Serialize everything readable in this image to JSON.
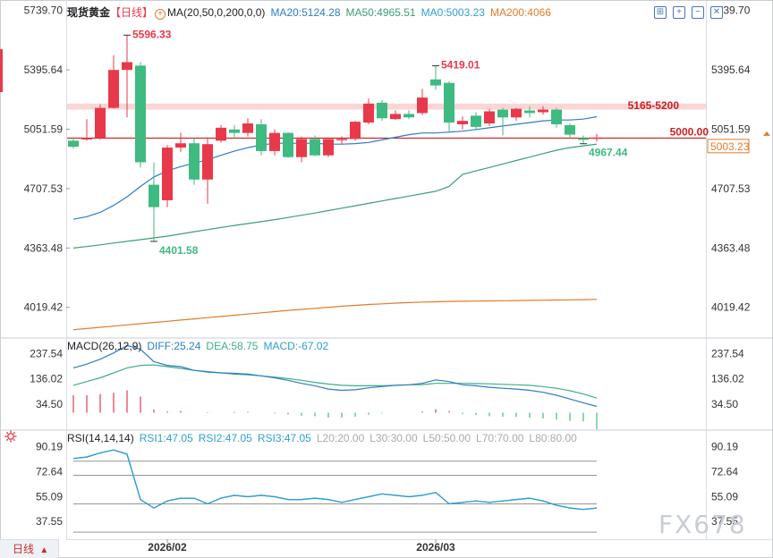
{
  "header": {
    "instrument": "现货黄金",
    "period": "【日线】",
    "ma_label": "MA(20,50,0,200,0,0)",
    "ma20": "MA20:5124.28",
    "ma50": "MA50:4965.51",
    "ma0": "MA0:5003.23",
    "ma200": "MA200:4066"
  },
  "macd_head": {
    "label": "MACD(26,12,9)",
    "diff": "DIFF:25.24",
    "dea": "DEA:58.75",
    "macd": "MACD:-67.02"
  },
  "rsi_head": {
    "label": "RSI(14,14,14)",
    "rsi1": "RSI1:47.05",
    "rsi2": "RSI2:47.05",
    "rsi3": "RSI3:47.05",
    "l20": "L20:20.00",
    "l30": "L30:30.00",
    "l50": "L50:50.00",
    "l70": "L70:70.00",
    "l80": "L80:80.00"
  },
  "period_tab": {
    "label": "日线",
    "arrow": "▲"
  },
  "watermark": "FX678",
  "icons": [
    "plus-circle-icon",
    "zoom-fit-icon",
    "zoom-in-icon",
    "zoom-out-icon",
    "close-icon",
    "gear-icon"
  ],
  "colors": {
    "up": "#e8394a",
    "down": "#3fba81",
    "ma20": "#2e7cc9",
    "ma50": "#3e9e72",
    "ma200": "#e07c2a",
    "ref": "#cc1f1f",
    "zone": "#f8c8c8",
    "macd_dea": "#3fae8a"
  },
  "chart_data": [
    {
      "type": "candlestick",
      "panel": "price",
      "title": "现货黄金",
      "yticks": [
        5739.7,
        5395.64,
        5051.59,
        4707.53,
        4363.48,
        4019.42
      ],
      "ylim": [
        3842,
        5800
      ],
      "xticks": [
        {
          "label": "2026/02",
          "index": 7
        },
        {
          "label": "2026/03",
          "index": 27
        }
      ],
      "candles": [
        {
          "o": 4985,
          "h": 5006,
          "l": 4940,
          "c": 4950
        },
        {
          "o": 5000,
          "h": 5110,
          "l": 4985,
          "c": 5000
        },
        {
          "o": 5000,
          "h": 5195,
          "l": 4990,
          "c": 5175
        },
        {
          "o": 5175,
          "h": 5480,
          "l": 5170,
          "c": 5395
        },
        {
          "o": 5395,
          "h": 5596.33,
          "l": 5120,
          "c": 5440
        },
        {
          "o": 5420,
          "h": 5440,
          "l": 4830,
          "c": 4860
        },
        {
          "o": 4730,
          "h": 4860,
          "l": 4401.58,
          "c": 4600
        },
        {
          "o": 4640,
          "h": 4960,
          "l": 4600,
          "c": 4945
        },
        {
          "o": 4945,
          "h": 5030,
          "l": 4920,
          "c": 4970
        },
        {
          "o": 4970,
          "h": 5000,
          "l": 4730,
          "c": 4760
        },
        {
          "o": 4760,
          "h": 5000,
          "l": 4620,
          "c": 4965
        },
        {
          "o": 4985,
          "h": 5075,
          "l": 4975,
          "c": 5060
        },
        {
          "o": 5050,
          "h": 5075,
          "l": 5005,
          "c": 5030
        },
        {
          "o": 5030,
          "h": 5115,
          "l": 5010,
          "c": 5085
        },
        {
          "o": 5080,
          "h": 5110,
          "l": 4900,
          "c": 4925
        },
        {
          "o": 4925,
          "h": 5050,
          "l": 4900,
          "c": 5030
        },
        {
          "o": 5030,
          "h": 5035,
          "l": 4885,
          "c": 4890
        },
        {
          "o": 4890,
          "h": 5010,
          "l": 4860,
          "c": 4995
        },
        {
          "o": 4995,
          "h": 5015,
          "l": 4895,
          "c": 4900
        },
        {
          "o": 4900,
          "h": 4990,
          "l": 4890,
          "c": 4995
        },
        {
          "o": 4990,
          "h": 5010,
          "l": 4965,
          "c": 4995
        },
        {
          "o": 4995,
          "h": 5100,
          "l": 4985,
          "c": 5095
        },
        {
          "o": 5090,
          "h": 5230,
          "l": 5080,
          "c": 5200
        },
        {
          "o": 5205,
          "h": 5220,
          "l": 5100,
          "c": 5115
        },
        {
          "o": 5110,
          "h": 5160,
          "l": 5105,
          "c": 5140
        },
        {
          "o": 5140,
          "h": 5160,
          "l": 5110,
          "c": 5120
        },
        {
          "o": 5145,
          "h": 5285,
          "l": 5135,
          "c": 5235
        },
        {
          "o": 5340,
          "h": 5419.01,
          "l": 5280,
          "c": 5305
        },
        {
          "o": 5320,
          "h": 5330,
          "l": 5030,
          "c": 5090
        },
        {
          "o": 5080,
          "h": 5125,
          "l": 5050,
          "c": 5100
        },
        {
          "o": 5130,
          "h": 5150,
          "l": 5050,
          "c": 5065
        },
        {
          "o": 5085,
          "h": 5170,
          "l": 5070,
          "c": 5155
        },
        {
          "o": 5165,
          "h": 5175,
          "l": 5015,
          "c": 5120
        },
        {
          "o": 5120,
          "h": 5175,
          "l": 5100,
          "c": 5170
        },
        {
          "o": 5160,
          "h": 5185,
          "l": 5120,
          "c": 5145
        },
        {
          "o": 5150,
          "h": 5185,
          "l": 5135,
          "c": 5165
        },
        {
          "o": 5165,
          "h": 5175,
          "l": 5060,
          "c": 5080
        },
        {
          "o": 5075,
          "h": 5085,
          "l": 5005,
          "c": 5020
        },
        {
          "o": 5000,
          "h": 5015,
          "l": 4967.44,
          "c": 4990
        },
        {
          "o": 5000,
          "h": 5025,
          "l": 4980,
          "c": 5003.23
        }
      ],
      "ma20": [
        4530,
        4545,
        4570,
        4610,
        4660,
        4720,
        4775,
        4810,
        4835,
        4855,
        4875,
        4900,
        4925,
        4945,
        4960,
        4970,
        4970,
        4970,
        4970,
        4965,
        4965,
        4968,
        4975,
        4990,
        5005,
        5020,
        5030,
        5030,
        5035,
        5040,
        5050,
        5060,
        5070,
        5080,
        5090,
        5100,
        5105,
        5105,
        5110,
        5124.28
      ],
      "ma50": [
        4363,
        4372,
        4382,
        4392,
        4402,
        4412,
        4422,
        4432,
        4445,
        4458,
        4470,
        4482,
        4494,
        4505,
        4516,
        4528,
        4540,
        4553,
        4566,
        4580,
        4594,
        4608,
        4622,
        4636,
        4650,
        4664,
        4678,
        4692,
        4720,
        4790,
        4810,
        4830,
        4850,
        4870,
        4890,
        4910,
        4930,
        4945,
        4955,
        4965.51
      ],
      "ma200": [
        3890,
        3897,
        3904,
        3911,
        3918,
        3925,
        3932,
        3939,
        3946,
        3953,
        3960,
        3967,
        3974,
        3981,
        3988,
        3995,
        4002,
        4008,
        4014,
        4020,
        4026,
        4031,
        4036,
        4040,
        4044,
        4047,
        4050,
        4052,
        4054,
        4055,
        4056,
        4057,
        4058,
        4059,
        4060,
        4061,
        4062,
        4063,
        4064,
        4066
      ],
      "reference_line": {
        "value": 5000.0,
        "label": "5000.00"
      },
      "zone": {
        "from": 5165,
        "to": 5200,
        "label": "5165-5200"
      },
      "last_price": {
        "value": 5003.23,
        "label": "5003.23"
      },
      "annotations": [
        {
          "label": "5596.33",
          "index": 4,
          "value": 5596.33,
          "color": "up"
        },
        {
          "label": "4401.58",
          "index": 6,
          "value": 4401.58,
          "color": "down"
        },
        {
          "label": "5419.01",
          "index": 27,
          "value": 5419.01,
          "color": "up"
        },
        {
          "label": "4967.44",
          "index": 38,
          "value": 4967.44,
          "color": "down"
        }
      ]
    },
    {
      "type": "line",
      "panel": "macd",
      "title": "MACD(26,12,9)",
      "yticks": [
        237.54,
        136.02,
        34.5
      ],
      "ylim": [
        -70,
        300
      ],
      "series": [
        {
          "name": "DIFF",
          "values": [
            180,
            195,
            215,
            240,
            270,
            255,
            205,
            190,
            185,
            170,
            165,
            160,
            158,
            155,
            148,
            140,
            130,
            118,
            108,
            95,
            90,
            92,
            100,
            105,
            110,
            112,
            118,
            132,
            125,
            112,
            108,
            102,
            98,
            95,
            90,
            82,
            70,
            55,
            40,
            25.24
          ]
        },
        {
          "name": "DEA",
          "values": [
            110,
            125,
            140,
            160,
            180,
            190,
            192,
            185,
            178,
            170,
            163,
            160,
            155,
            152,
            148,
            143,
            137,
            130,
            122,
            115,
            110,
            108,
            108,
            108,
            110,
            112,
            113,
            118,
            118,
            118,
            117,
            116,
            114,
            112,
            110,
            105,
            98,
            88,
            75,
            58.75
          ]
        },
        {
          "name": "MACD",
          "values": [
            70,
            70,
            75,
            80,
            90,
            65,
            13,
            5,
            7,
            0,
            2,
            0,
            3,
            3,
            0,
            -3,
            -7,
            -12,
            -14,
            -20,
            -20,
            -16,
            -8,
            -3,
            0,
            0,
            5,
            14,
            7,
            -6,
            -9,
            -14,
            -16,
            -17,
            -20,
            -23,
            -28,
            -33,
            -35,
            -67.02
          ]
        }
      ]
    },
    {
      "type": "line",
      "panel": "rsi",
      "title": "RSI(14,14,14)",
      "yticks": [
        90.19,
        72.64,
        55.09,
        37.55
      ],
      "ylim": [
        25,
        102
      ],
      "levels": [
        20,
        30,
        50,
        70,
        80
      ],
      "series": [
        {
          "name": "RSI1",
          "values": [
            82,
            83,
            86,
            88,
            85,
            53,
            47,
            52,
            54,
            54,
            50,
            54,
            56,
            55,
            56,
            55,
            53,
            53,
            54,
            53,
            51,
            53,
            55,
            57,
            56,
            55,
            56,
            58,
            50,
            51,
            52,
            51,
            52,
            53,
            54,
            52,
            49,
            47,
            46,
            47.05
          ]
        },
        {
          "name": "RSI2",
          "values": [
            82,
            83,
            86,
            88,
            85,
            53,
            47,
            52,
            54,
            54,
            50,
            54,
            56,
            55,
            56,
            55,
            53,
            53,
            54,
            53,
            51,
            53,
            55,
            57,
            56,
            55,
            56,
            58,
            50,
            51,
            52,
            51,
            52,
            53,
            54,
            52,
            49,
            47,
            46,
            47.05
          ]
        },
        {
          "name": "RSI3",
          "values": [
            82,
            83,
            86,
            88,
            85,
            53,
            47,
            52,
            54,
            54,
            50,
            54,
            56,
            55,
            56,
            55,
            53,
            53,
            54,
            53,
            51,
            53,
            55,
            57,
            56,
            55,
            56,
            58,
            50,
            51,
            52,
            51,
            52,
            53,
            54,
            52,
            49,
            47,
            46,
            47.05
          ]
        }
      ]
    }
  ]
}
